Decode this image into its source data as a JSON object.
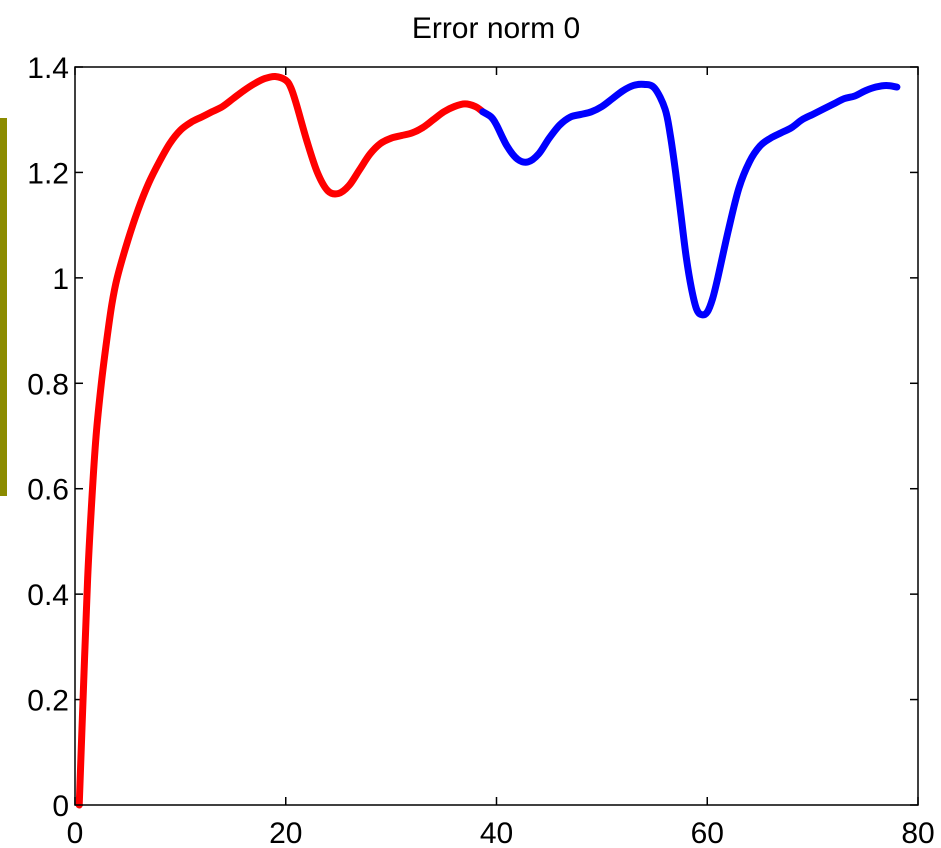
{
  "chart_data": {
    "type": "line",
    "title": "Error norm 0",
    "xlabel": "",
    "ylabel": "",
    "xlim": [
      0,
      80
    ],
    "ylim": [
      0,
      1.4
    ],
    "x_ticks": [
      0,
      20,
      40,
      60,
      80
    ],
    "y_ticks": [
      0,
      0.2,
      0.4,
      0.6,
      0.8,
      1,
      1.2,
      1.4
    ],
    "x_tick_labels": [
      "0",
      "20",
      "40",
      "60",
      "80"
    ],
    "y_tick_labels": [
      "0",
      "0.2",
      "0.4",
      "0.6",
      "0.8",
      "1",
      "1.2",
      "1.4"
    ],
    "grid": false,
    "series": [
      {
        "color": "#ff0000",
        "x": [
          0.4,
          0.8,
          1.2,
          1.6,
          2,
          2.5,
          3,
          3.5,
          4,
          5,
          6,
          7,
          8,
          9,
          10,
          11,
          12,
          13,
          14,
          15,
          16,
          17,
          18,
          19,
          20,
          20.5,
          21,
          22,
          23,
          24,
          25,
          26,
          27,
          28,
          29,
          30,
          31,
          32,
          33,
          34,
          35,
          36,
          37,
          38,
          38.7
        ],
        "y": [
          0.0,
          0.22,
          0.43,
          0.58,
          0.7,
          0.8,
          0.88,
          0.95,
          1.0,
          1.07,
          1.13,
          1.18,
          1.22,
          1.255,
          1.28,
          1.295,
          1.305,
          1.315,
          1.325,
          1.34,
          1.355,
          1.368,
          1.378,
          1.382,
          1.375,
          1.36,
          1.33,
          1.26,
          1.2,
          1.165,
          1.16,
          1.175,
          1.205,
          1.235,
          1.255,
          1.265,
          1.27,
          1.275,
          1.285,
          1.3,
          1.315,
          1.325,
          1.33,
          1.325,
          1.315
        ]
      },
      {
        "color": "#0000ff",
        "x": [
          38.7,
          39.5,
          40,
          41,
          42,
          43,
          44,
          45,
          46,
          47,
          48,
          49,
          50,
          51,
          52,
          53,
          54,
          55,
          56,
          56.5,
          57,
          57.5,
          58,
          58.5,
          59,
          59.5,
          60,
          60.5,
          61,
          62,
          63,
          64,
          65,
          66,
          67,
          68,
          69,
          70,
          71,
          72,
          73,
          74,
          75,
          76,
          77,
          78
        ],
        "y": [
          1.315,
          1.305,
          1.29,
          1.25,
          1.225,
          1.22,
          1.235,
          1.265,
          1.29,
          1.305,
          1.31,
          1.315,
          1.325,
          1.34,
          1.355,
          1.365,
          1.367,
          1.36,
          1.32,
          1.27,
          1.2,
          1.12,
          1.04,
          0.98,
          0.94,
          0.93,
          0.935,
          0.96,
          1.0,
          1.09,
          1.17,
          1.22,
          1.25,
          1.265,
          1.275,
          1.285,
          1.3,
          1.31,
          1.32,
          1.33,
          1.34,
          1.345,
          1.355,
          1.362,
          1.365,
          1.362
        ]
      }
    ]
  },
  "side_bar": {
    "color": "#8b8b00"
  }
}
